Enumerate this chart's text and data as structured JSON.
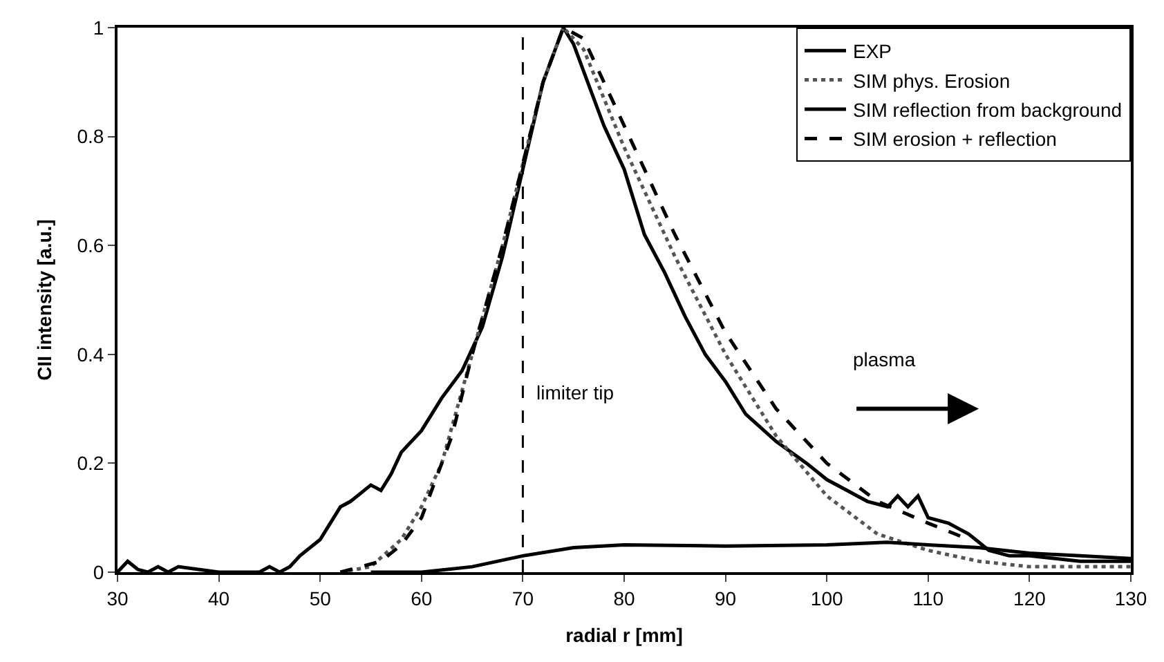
{
  "chart_data": {
    "type": "line",
    "xlabel": "radial r [mm]",
    "ylabel": "CII intensity [a.u.]",
    "xlim": [
      30,
      130
    ],
    "ylim": [
      0,
      1
    ],
    "xticks": [
      30,
      40,
      50,
      60,
      70,
      80,
      90,
      100,
      110,
      120,
      130
    ],
    "yticks": [
      0,
      0.2,
      0.4,
      0.6,
      0.8,
      1
    ],
    "legend": "top right",
    "marker": "none",
    "series": [
      {
        "name": "EXP",
        "color": "#000000",
        "line_style": "solid",
        "x": [
          30,
          31,
          32,
          33,
          34,
          35,
          36,
          40,
          44,
          45,
          46,
          47,
          48,
          50,
          51,
          52,
          53,
          55,
          56,
          57,
          58,
          60,
          62,
          64,
          66,
          68,
          70,
          71,
          72,
          73,
          74,
          75,
          76,
          78,
          80,
          82,
          84,
          86,
          88,
          90,
          92,
          95,
          98,
          100,
          102,
          104,
          106,
          107,
          108,
          109,
          110,
          112,
          114,
          116,
          118,
          120,
          125,
          130
        ],
        "values": [
          0,
          0.02,
          0.005,
          0,
          0.01,
          0,
          0.01,
          0,
          0,
          0.01,
          0,
          0.01,
          0.03,
          0.06,
          0.09,
          0.12,
          0.13,
          0.16,
          0.15,
          0.18,
          0.22,
          0.26,
          0.32,
          0.37,
          0.45,
          0.58,
          0.74,
          0.82,
          0.9,
          0.95,
          1.0,
          0.97,
          0.92,
          0.82,
          0.74,
          0.62,
          0.55,
          0.47,
          0.4,
          0.35,
          0.29,
          0.24,
          0.2,
          0.17,
          0.15,
          0.13,
          0.12,
          0.14,
          0.12,
          0.14,
          0.1,
          0.09,
          0.07,
          0.04,
          0.03,
          0.03,
          0.02,
          0.02
        ]
      },
      {
        "name": "SIM phys. Erosion",
        "color": "#555555",
        "line_style": "dotted",
        "x": [
          52,
          55,
          58,
          60,
          62,
          65,
          68,
          70,
          72,
          74,
          76,
          78,
          80,
          85,
          90,
          95,
          100,
          105,
          110,
          115,
          120,
          125,
          130
        ],
        "values": [
          0,
          0.01,
          0.06,
          0.12,
          0.2,
          0.4,
          0.6,
          0.75,
          0.9,
          1.0,
          0.96,
          0.87,
          0.78,
          0.58,
          0.4,
          0.25,
          0.14,
          0.07,
          0.04,
          0.02,
          0.01,
          0.01,
          0.01
        ]
      },
      {
        "name": "SIM reflection from background",
        "color": "#000000",
        "line_style": "solid",
        "x": [
          55,
          60,
          65,
          70,
          75,
          80,
          90,
          100,
          106,
          110,
          115,
          120,
          125,
          130
        ],
        "values": [
          0,
          0,
          0.01,
          0.03,
          0.045,
          0.05,
          0.048,
          0.05,
          0.055,
          0.05,
          0.045,
          0.035,
          0.03,
          0.025
        ]
      },
      {
        "name": "SIM erosion + reflection",
        "color": "#000000",
        "line_style": "dashed",
        "x": [
          52,
          56,
          58,
          60,
          63,
          65,
          68,
          70,
          72,
          74,
          76,
          78,
          80,
          85,
          90,
          95,
          100,
          105,
          110,
          114
        ],
        "values": [
          0,
          0.02,
          0.05,
          0.1,
          0.25,
          0.4,
          0.6,
          0.75,
          0.9,
          1.0,
          0.98,
          0.9,
          0.82,
          0.62,
          0.44,
          0.3,
          0.2,
          0.13,
          0.09,
          0.06
        ]
      }
    ],
    "ref_lines": [
      {
        "axis": "x",
        "value": 70,
        "label": "limiter tip",
        "color": "#000000",
        "line_style": "dashed"
      }
    ],
    "annotations": [
      "plasma"
    ]
  }
}
